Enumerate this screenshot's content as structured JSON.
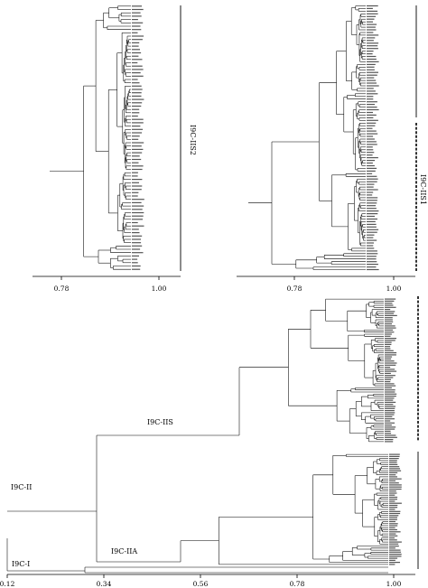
{
  "panels": {
    "top_left": {
      "axis_ticks": [
        "0.78",
        "1.00"
      ],
      "clade_label": "I9C-IIS2"
    },
    "top_right": {
      "axis_ticks": [
        "0.78",
        "1.00"
      ],
      "clade_label": "I9C-IIS1"
    },
    "bottom": {
      "axis_ticks": [
        "0.12",
        "0.34",
        "0.56",
        "0.78",
        "1.00"
      ],
      "clade_labels": {
        "iis": "I9C-IIS",
        "ii": "I9C-II",
        "iia": "I9C-IIA",
        "i": "I9C-I"
      }
    }
  },
  "colors": {
    "line": "#000000",
    "background": "#ffffff",
    "leaf_text": "#333333"
  }
}
